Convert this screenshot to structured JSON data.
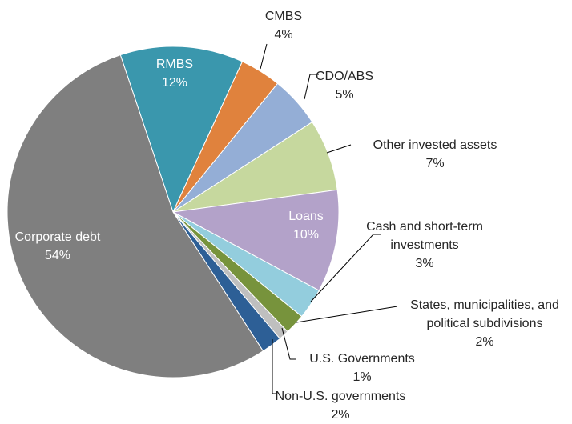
{
  "chart_data": {
    "type": "pie",
    "categories": [
      "RMBS",
      "CMBS",
      "CDO/ABS",
      "Other invested assets",
      "Loans",
      "Cash and short-term investments",
      "States, municipalities, and political subdivisions",
      "U.S. Governments",
      "Non-U.S. governments",
      "Corporate debt"
    ],
    "values": [
      12,
      4,
      5,
      7,
      10,
      3,
      2,
      1,
      2,
      54
    ],
    "value_labels": [
      "12%",
      "4%",
      "5%",
      "7%",
      "10%",
      "3%",
      "2%",
      "1%",
      "2%",
      "54%"
    ],
    "colors": [
      "#3a97ad",
      "#e0823d",
      "#94aed6",
      "#c6d89e",
      "#b3a2c9",
      "#93cddd",
      "#77933c",
      "#bfbfbf",
      "#2d5f96",
      "#7f7f7f"
    ]
  }
}
